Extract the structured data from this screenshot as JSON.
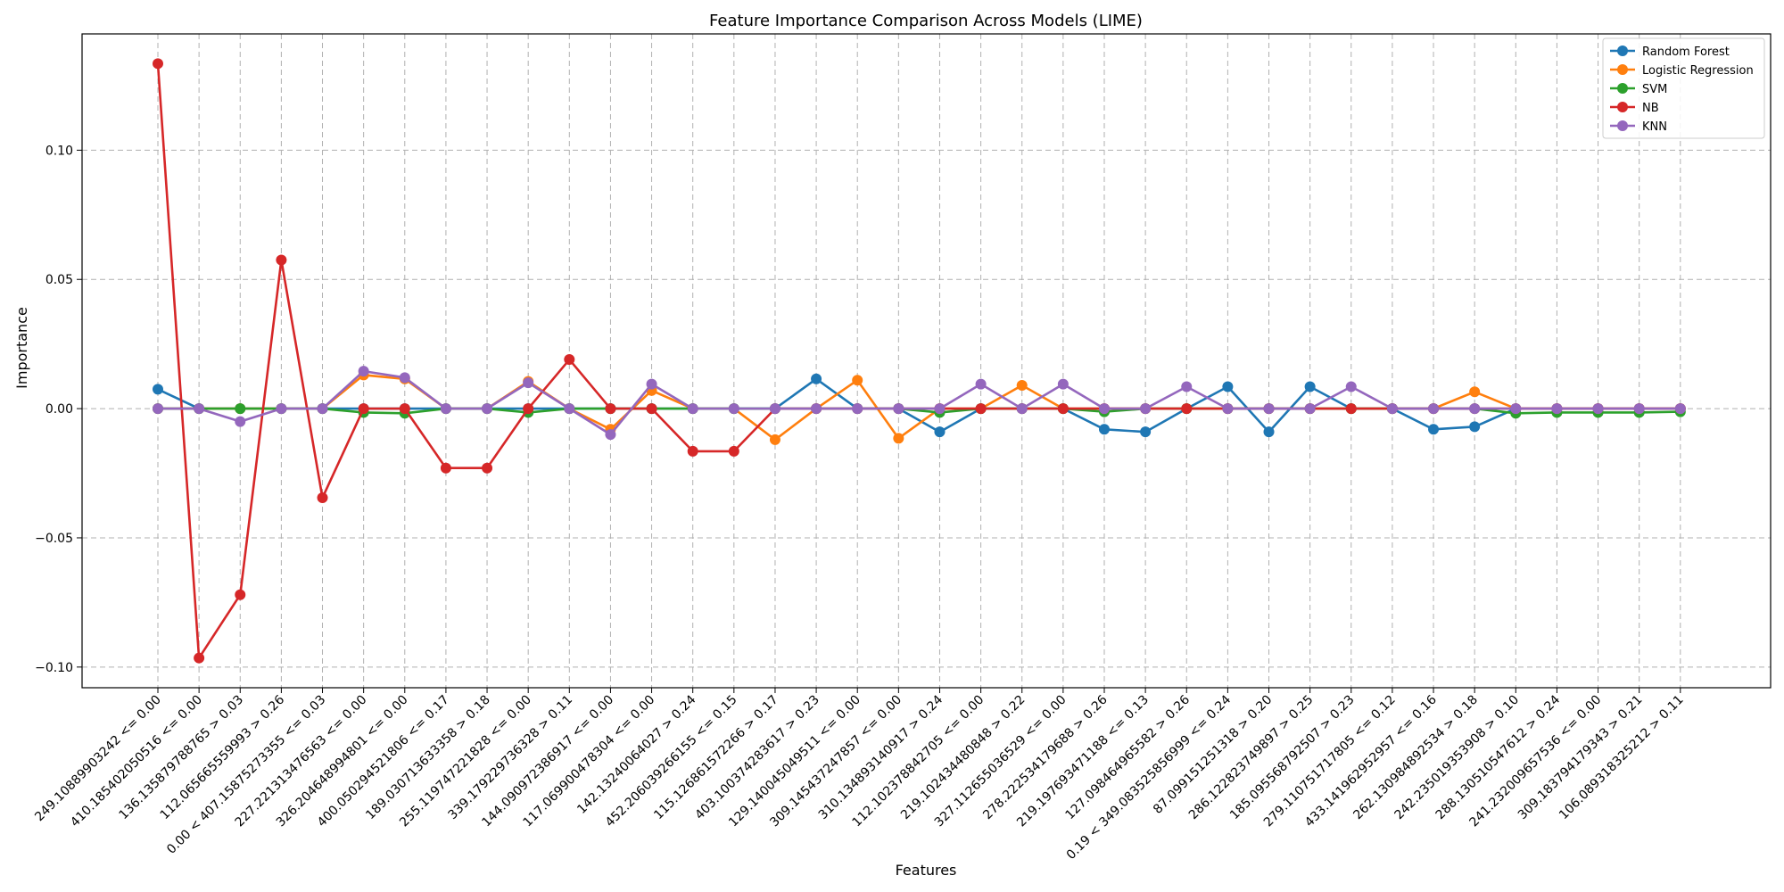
{
  "chart_data": {
    "type": "line",
    "title": "Feature Importance Comparison Across Models (LIME)",
    "xlabel": "Features",
    "ylabel": "Importance",
    "ylim": [
      -0.108,
      0.145
    ],
    "yticks": [
      -0.1,
      -0.05,
      0.0,
      0.05,
      0.1
    ],
    "ytick_labels": [
      "−0.10",
      "−0.05",
      "0.00",
      "0.05",
      "0.10"
    ],
    "grid": true,
    "legend_position": "top-right",
    "categories": [
      "249.10889903242 <= 0.00",
      "410.185402050516 <= 0.00",
      "136.135879788765 > 0.03",
      "112.065665559993 > 0.26",
      "0.00 < 407.15875273355 <= 0.03",
      "227.221313476563 <= 0.00",
      "326.204648994801 <= 0.00",
      "400.050294521806 <= 0.17",
      "189.030713633358 > 0.18",
      "255.119747221828 <= 0.00",
      "339.179229736328 > 0.11",
      "144.090972386917 <= 0.00",
      "117.069900478304 <= 0.00",
      "142.13240064027 > 0.24",
      "452.206039266155 <= 0.15",
      "115.126861572266 > 0.17",
      "403.100374283617 > 0.23",
      "129.140045049511 <= 0.00",
      "309.145437247857 <= 0.00",
      "310.134893140917 > 0.24",
      "112.102378842705 <= 0.00",
      "219.102434480848 > 0.22",
      "327.112655036529 <= 0.00",
      "278.222534179688 > 0.26",
      "219.197693471188 <= 0.13",
      "127.098464965582 > 0.26",
      "0.19 < 349.083525856999 <= 0.24",
      "87.099151251318 > 0.20",
      "286.122823749897 > 0.25",
      "185.095568792507 > 0.23",
      "279.110751717805 <= 0.12",
      "433.141962952957 <= 0.16",
      "262.130984892534 > 0.18",
      "242.235019353908 > 0.10",
      "288.130510547612 > 0.24",
      "241.232009657536 <= 0.00",
      "309.183794179343 > 0.21",
      "106.089318325212 > 0.11"
    ],
    "series": [
      {
        "name": "Random Forest",
        "color": "#1f77b4",
        "values": [
          0.0075,
          0.0,
          0.0,
          0.0,
          0.0,
          0.0,
          0.0,
          0.0,
          0.0,
          0.0,
          0.0,
          0.0,
          0.0,
          0.0,
          0.0,
          0.0,
          0.0115,
          0.0,
          0.0,
          -0.009,
          0.0,
          0.0,
          0.0,
          -0.008,
          -0.009,
          0.0,
          0.0085,
          -0.009,
          0.0085,
          0.0,
          0.0,
          -0.008,
          -0.007,
          0.0,
          0.0,
          0.0,
          0.0,
          0.0
        ]
      },
      {
        "name": "Logistic Regression",
        "color": "#ff7f0e",
        "values": [
          0.0,
          0.0,
          0.0,
          0.0,
          0.0,
          0.013,
          0.0115,
          0.0,
          0.0,
          0.0105,
          0.0,
          -0.008,
          0.007,
          0.0,
          0.0,
          -0.012,
          0.0,
          0.011,
          -0.0115,
          0.0,
          0.0,
          0.009,
          0.0,
          0.0,
          0.0,
          0.0,
          0.0,
          0.0,
          0.0,
          0.0,
          0.0,
          0.0,
          0.0065,
          0.0,
          0.0,
          0.0,
          0.0,
          0.0
        ]
      },
      {
        "name": "SVM",
        "color": "#2ca02c",
        "values": [
          0.0,
          0.0,
          0.0,
          0.0,
          0.0,
          -0.0015,
          -0.0018,
          0.0,
          0.0,
          -0.0015,
          0.0,
          0.0,
          0.0,
          0.0,
          0.0,
          0.0,
          0.0,
          0.0,
          0.0,
          -0.0015,
          0.0,
          0.0,
          0.0,
          -0.0012,
          0.0,
          0.0,
          0.0,
          0.0,
          0.0,
          0.0,
          0.0,
          0.0,
          0.0,
          -0.0018,
          -0.0015,
          -0.0015,
          -0.0015,
          -0.0012
        ]
      },
      {
        "name": "NB",
        "color": "#d62728",
        "values": [
          0.1335,
          -0.0965,
          -0.072,
          0.0575,
          -0.0345,
          0.0,
          0.0,
          -0.023,
          -0.023,
          0.0,
          0.019,
          0.0,
          0.0,
          -0.0165,
          -0.0165,
          0.0,
          0.0,
          0.0,
          0.0,
          0.0,
          0.0,
          0.0,
          0.0,
          0.0,
          0.0,
          0.0,
          0.0,
          0.0,
          0.0,
          0.0,
          0.0,
          0.0,
          0.0,
          0.0,
          0.0,
          0.0,
          0.0,
          0.0
        ]
      },
      {
        "name": "KNN",
        "color": "#9467bd",
        "values": [
          0.0,
          0.0,
          -0.005,
          0.0,
          0.0,
          0.0145,
          0.012,
          0.0,
          0.0,
          0.01,
          0.0,
          -0.01,
          0.0095,
          0.0,
          0.0,
          0.0,
          0.0,
          0.0,
          0.0,
          0.0,
          0.0095,
          0.0,
          0.0095,
          0.0,
          0.0,
          0.0085,
          0.0,
          0.0,
          0.0,
          0.0085,
          0.0,
          0.0,
          0.0,
          0.0,
          0.0,
          0.0,
          0.0,
          0.0
        ]
      }
    ]
  }
}
